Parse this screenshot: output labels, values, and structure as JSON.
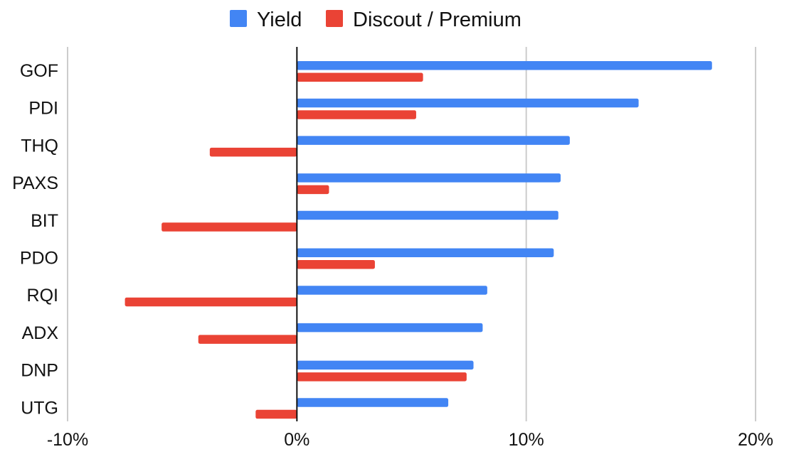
{
  "chart_data": {
    "type": "bar",
    "orientation": "horizontal",
    "categories": [
      "GOF",
      "PDI",
      "THQ",
      "PAXS",
      "BIT",
      "PDO",
      "RQI",
      "ADX",
      "DNP",
      "UTG"
    ],
    "series": [
      {
        "name": "Yield",
        "color": "#4285F4",
        "values": [
          18.1,
          14.9,
          11.9,
          11.5,
          11.4,
          11.2,
          8.3,
          8.1,
          7.7,
          6.6
        ]
      },
      {
        "name": "Discout / Premium",
        "color": "#EA4335",
        "values": [
          5.5,
          5.2,
          -3.8,
          1.4,
          -5.9,
          3.4,
          -7.5,
          -4.3,
          7.4,
          -1.8
        ]
      }
    ],
    "xlim": [
      -10,
      20
    ],
    "xticks": [
      -10,
      0,
      10,
      20
    ],
    "xtick_labels": [
      "-10%",
      "0%",
      "10%",
      "20%"
    ],
    "grid": "vertical",
    "legend_position": "top"
  }
}
